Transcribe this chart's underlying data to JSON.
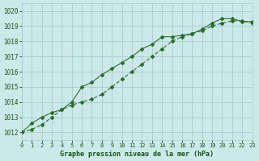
{
  "xlabel": "Graphe pression niveau de la mer (hPa)",
  "x": [
    0,
    1,
    2,
    3,
    4,
    5,
    6,
    7,
    8,
    9,
    10,
    11,
    12,
    13,
    14,
    15,
    16,
    17,
    18,
    19,
    20,
    21,
    22,
    23
  ],
  "line1": [
    1012.0,
    1012.6,
    1013.0,
    1013.3,
    1013.5,
    1014.0,
    1015.0,
    1015.3,
    1015.8,
    1016.2,
    1016.6,
    1017.0,
    1017.5,
    1017.8,
    1018.3,
    1018.3,
    1018.4,
    1018.5,
    1018.8,
    1019.2,
    1019.5,
    1019.5,
    1019.3,
    1019.3
  ],
  "line2": [
    1012.0,
    1012.2,
    1012.5,
    1013.0,
    1013.5,
    1013.8,
    1014.0,
    1014.2,
    1014.5,
    1015.0,
    1015.5,
    1016.0,
    1016.5,
    1017.0,
    1017.5,
    1018.0,
    1018.3,
    1018.5,
    1018.7,
    1019.0,
    1019.2,
    1019.35,
    1019.35,
    1019.2
  ],
  "line_color": "#2d6a2d",
  "bg_color": "#cce9ea",
  "grid_color": "#aacccc",
  "text_color": "#1a5218",
  "ylim": [
    1011.5,
    1020.5
  ],
  "xlim": [
    0,
    23
  ],
  "yticks": [
    1012,
    1013,
    1014,
    1015,
    1016,
    1017,
    1018,
    1019,
    1020
  ],
  "xticks": [
    0,
    1,
    2,
    3,
    4,
    5,
    6,
    7,
    8,
    9,
    10,
    11,
    12,
    13,
    14,
    15,
    16,
    17,
    18,
    19,
    20,
    21,
    22,
    23
  ]
}
